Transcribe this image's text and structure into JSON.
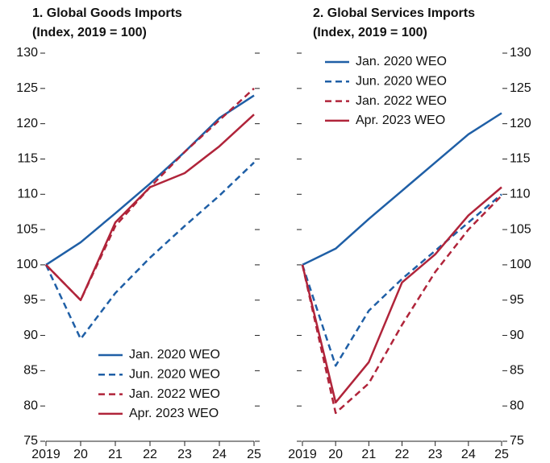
{
  "chart_data": [
    {
      "type": "line",
      "title": "1. Global Goods Imports",
      "subtitle": "(Index, 2019 = 100)",
      "x": [
        2019,
        2020,
        2021,
        2022,
        2023,
        2024,
        2025
      ],
      "xlim": [
        2019,
        2025
      ],
      "xticks": [
        {
          "value": 2019,
          "label": "2019"
        },
        {
          "value": 2020,
          "label": "20"
        },
        {
          "value": 2021,
          "label": "21"
        },
        {
          "value": 2022,
          "label": "22"
        },
        {
          "value": 2023,
          "label": "23"
        },
        {
          "value": 2024,
          "label": "24"
        },
        {
          "value": 2025,
          "label": "25"
        }
      ],
      "ylim": [
        75,
        130
      ],
      "yticks": [
        75,
        80,
        85,
        90,
        95,
        100,
        105,
        110,
        115,
        120,
        125,
        130
      ],
      "y_label_side": "left",
      "legend": "lower right",
      "series": [
        {
          "name": "Jan. 2020 WEO",
          "color": "#1f5fa6",
          "dashed": false,
          "values": [
            100,
            103.2,
            107.3,
            111.5,
            116,
            120.8,
            124
          ]
        },
        {
          "name": "Jun. 2020 WEO",
          "color": "#1f5fa6",
          "dashed": true,
          "values": [
            100,
            89.5,
            96,
            101,
            105.5,
            109.8,
            114.5
          ]
        },
        {
          "name": "Jan. 2022 WEO",
          "color": "#b0243a",
          "dashed": true,
          "values": [
            100,
            95,
            105.5,
            111,
            116,
            120.5,
            125
          ]
        },
        {
          "name": "Apr. 2023 WEO",
          "color": "#b0243a",
          "dashed": false,
          "values": [
            100,
            95,
            106,
            111,
            113,
            116.8,
            121.3
          ]
        }
      ]
    },
    {
      "type": "line",
      "title": "2. Global Services Imports",
      "subtitle": "(Index, 2019 = 100)",
      "x": [
        2019,
        2020,
        2021,
        2022,
        2023,
        2024,
        2025
      ],
      "xlim": [
        2019,
        2025
      ],
      "xticks": [
        {
          "value": 2019,
          "label": "2019"
        },
        {
          "value": 2020,
          "label": "20"
        },
        {
          "value": 2021,
          "label": "21"
        },
        {
          "value": 2022,
          "label": "22"
        },
        {
          "value": 2023,
          "label": "23"
        },
        {
          "value": 2024,
          "label": "24"
        },
        {
          "value": 2025,
          "label": "25"
        }
      ],
      "ylim": [
        75,
        130
      ],
      "yticks": [
        75,
        80,
        85,
        90,
        95,
        100,
        105,
        110,
        115,
        120,
        125,
        130
      ],
      "y_label_side": "right",
      "legend": "upper left",
      "series": [
        {
          "name": "Jan. 2020 WEO",
          "color": "#1f5fa6",
          "dashed": false,
          "values": [
            100,
            102.3,
            106.5,
            110.5,
            114.5,
            118.5,
            121.5
          ]
        },
        {
          "name": "Jun. 2020 WEO",
          "color": "#1f5fa6",
          "dashed": true,
          "values": [
            100,
            85.7,
            93.5,
            98,
            102,
            106,
            110
          ]
        },
        {
          "name": "Jan. 2022 WEO",
          "color": "#b0243a",
          "dashed": true,
          "values": [
            100,
            79,
            83.2,
            91.5,
            99,
            105,
            109.8
          ]
        },
        {
          "name": "Apr. 2023 WEO",
          "color": "#b0243a",
          "dashed": false,
          "values": [
            100,
            80.5,
            86.2,
            97.5,
            101.5,
            107,
            111
          ]
        }
      ]
    }
  ]
}
